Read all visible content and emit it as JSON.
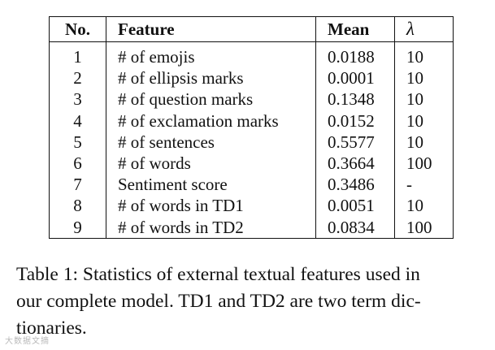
{
  "table": {
    "headers": [
      "No.",
      "Feature",
      "Mean",
      "λ"
    ],
    "rows": [
      {
        "no": "1",
        "feature": "# of emojis",
        "mean": "0.0188",
        "lambda": "10"
      },
      {
        "no": "2",
        "feature": "# of ellipsis marks",
        "mean": "0.0001",
        "lambda": "10"
      },
      {
        "no": "3",
        "feature": "# of question marks",
        "mean": "0.1348",
        "lambda": "10"
      },
      {
        "no": "4",
        "feature": "# of exclamation marks",
        "mean": "0.0152",
        "lambda": "10"
      },
      {
        "no": "5",
        "feature": "# of sentences",
        "mean": "0.5577",
        "lambda": "10"
      },
      {
        "no": "6",
        "feature": "# of words",
        "mean": "0.3664",
        "lambda": "100"
      },
      {
        "no": "7",
        "feature": "Sentiment score",
        "mean": "0.3486",
        "lambda": "-"
      },
      {
        "no": "8",
        "feature": "# of words in TD1",
        "mean": "0.0051",
        "lambda": "10"
      },
      {
        "no": "9",
        "feature": "# of words in TD2",
        "mean": "0.0834",
        "lambda": "100"
      }
    ]
  },
  "caption": {
    "lines": [
      "Table 1:  Statistics of external textual features used in",
      "our complete model.  TD1 and TD2 are two term dic-",
      "tionaries."
    ]
  },
  "watermark": {
    "text": "大数据文摘"
  }
}
